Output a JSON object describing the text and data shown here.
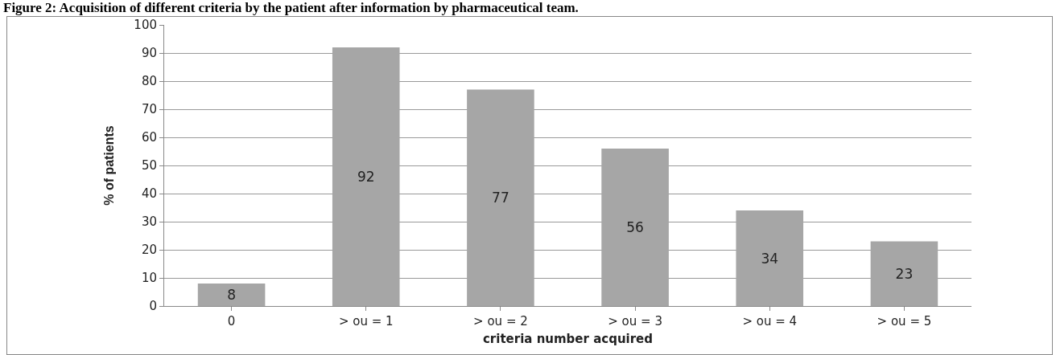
{
  "chart_data": {
    "type": "bar",
    "title": "Figure 2: Acquisition of different criteria by the patient after information by pharmaceutical team.",
    "xlabel": "criteria number acquired",
    "ylabel": "% of patients",
    "categories": [
      "0",
      "> ou = 1",
      "> ou = 2",
      "> ou = 3",
      "> ou = 4",
      "> ou = 5"
    ],
    "values": [
      8,
      92,
      77,
      56,
      34,
      23
    ],
    "color": "#a6a6a6",
    "data_labels": true,
    "ylim": [
      0,
      100
    ],
    "yticks": [
      0,
      10,
      20,
      30,
      40,
      50,
      60,
      70,
      80,
      90,
      100
    ],
    "grid": "y"
  }
}
